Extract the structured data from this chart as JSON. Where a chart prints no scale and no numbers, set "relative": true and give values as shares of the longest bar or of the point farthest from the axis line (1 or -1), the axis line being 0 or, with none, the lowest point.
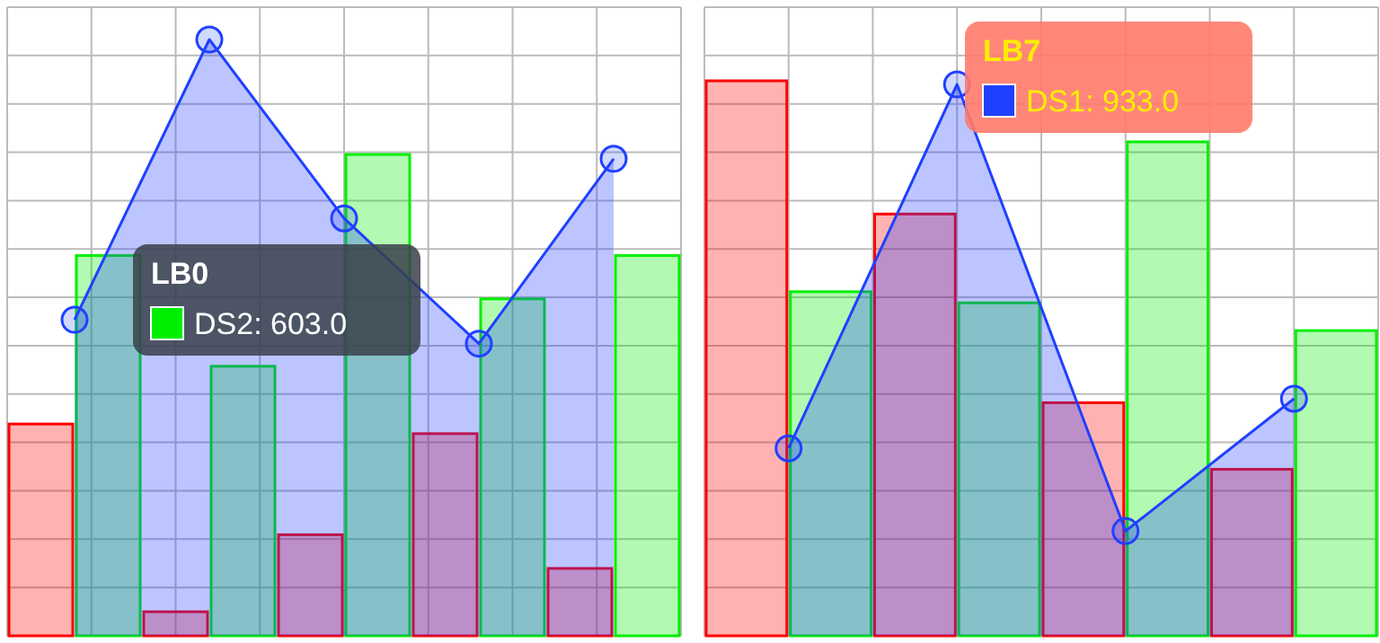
{
  "chart_data": [
    {
      "type": "bar",
      "relative": true,
      "grid": true,
      "categories": [
        null,
        null,
        null,
        null,
        null
      ],
      "series": [
        {
          "color": "#ff0000",
          "values": [
            0.44,
            0.05,
            0.21,
            0.42,
            0.14
          ]
        },
        {
          "color": "#00ee00",
          "values": [
            0.79,
            0.56,
            1,
            0.7,
            0.79
          ]
        }
      ]
    },
    {
      "type": "area",
      "relative": true,
      "marker": "circle",
      "categories": [
        null,
        null,
        null,
        null,
        null
      ],
      "annotations": [
        "LB0",
        "DS2: 603.0"
      ],
      "series": [
        {
          "color": "#2040ff",
          "values": [
            0.53,
            1,
            0.7,
            0.49,
            0.8
          ]
        }
      ]
    },
    {
      "type": "bar",
      "relative": true,
      "grid": true,
      "categories": [
        null,
        null,
        null,
        null
      ],
      "series": [
        {
          "color": "#ff0000",
          "values": [
            1,
            0.76,
            0.42,
            0.3
          ]
        },
        {
          "color": "#00ee00",
          "values": [
            0.62,
            0.6,
            0.89,
            0.55
          ]
        }
      ]
    },
    {
      "type": "area",
      "relative": true,
      "marker": "circle",
      "categories": [
        null,
        null,
        null,
        null
      ],
      "annotations": [
        "LB7",
        "DS1: 933.0"
      ],
      "series": [
        {
          "color": "#2040ff",
          "values": [
            0.34,
            1,
            0.19,
            0.43
          ]
        }
      ]
    }
  ]
}
